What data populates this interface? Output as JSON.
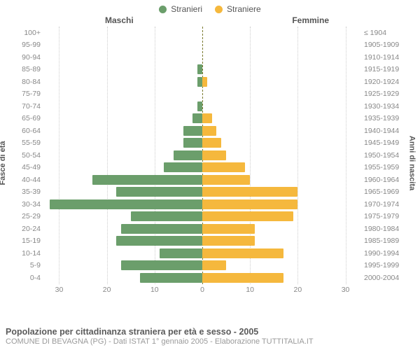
{
  "legend": {
    "male": {
      "label": "Stranieri",
      "color": "#6b9e6b"
    },
    "female": {
      "label": "Straniere",
      "color": "#f5b83d"
    }
  },
  "columns": {
    "male": "Maschi",
    "female": "Femmine"
  },
  "axes": {
    "left_title": "Fasce di età",
    "right_title": "Anni di nascita",
    "x_max": 33,
    "x_ticks": [
      30,
      20,
      10,
      0,
      10,
      20,
      30
    ],
    "grid_vals": [
      30,
      20,
      10,
      0
    ]
  },
  "chart": {
    "type": "population-pyramid",
    "row_height": 17.5,
    "bar_color_male": "#6b9e6b",
    "bar_color_female": "#f5b83d",
    "background": "#ffffff",
    "grid_color": "#cccccc",
    "center_color": "#7a7a2f",
    "rows": [
      {
        "age": "100+",
        "birth": "≤ 1904",
        "m": 0,
        "f": 0
      },
      {
        "age": "95-99",
        "birth": "1905-1909",
        "m": 0,
        "f": 0
      },
      {
        "age": "90-94",
        "birth": "1910-1914",
        "m": 0,
        "f": 0
      },
      {
        "age": "85-89",
        "birth": "1915-1919",
        "m": 1,
        "f": 0
      },
      {
        "age": "80-84",
        "birth": "1920-1924",
        "m": 1,
        "f": 1
      },
      {
        "age": "75-79",
        "birth": "1925-1929",
        "m": 0,
        "f": 0
      },
      {
        "age": "70-74",
        "birth": "1930-1934",
        "m": 1,
        "f": 0
      },
      {
        "age": "65-69",
        "birth": "1935-1939",
        "m": 2,
        "f": 2
      },
      {
        "age": "60-64",
        "birth": "1940-1944",
        "m": 4,
        "f": 3
      },
      {
        "age": "55-59",
        "birth": "1945-1949",
        "m": 4,
        "f": 4
      },
      {
        "age": "50-54",
        "birth": "1950-1954",
        "m": 6,
        "f": 5
      },
      {
        "age": "45-49",
        "birth": "1955-1959",
        "m": 8,
        "f": 9
      },
      {
        "age": "40-44",
        "birth": "1960-1964",
        "m": 23,
        "f": 10
      },
      {
        "age": "35-39",
        "birth": "1965-1969",
        "m": 18,
        "f": 20
      },
      {
        "age": "30-34",
        "birth": "1970-1974",
        "m": 32,
        "f": 20
      },
      {
        "age": "25-29",
        "birth": "1975-1979",
        "m": 15,
        "f": 19
      },
      {
        "age": "20-24",
        "birth": "1980-1984",
        "m": 17,
        "f": 11
      },
      {
        "age": "15-19",
        "birth": "1985-1989",
        "m": 18,
        "f": 11
      },
      {
        "age": "10-14",
        "birth": "1990-1994",
        "m": 9,
        "f": 17
      },
      {
        "age": "5-9",
        "birth": "1995-1999",
        "m": 17,
        "f": 5
      },
      {
        "age": "0-4",
        "birth": "2000-2004",
        "m": 13,
        "f": 17
      }
    ]
  },
  "footer": {
    "title": "Popolazione per cittadinanza straniera per età e sesso - 2005",
    "sub": "COMUNE DI BEVAGNA (PG) - Dati ISTAT 1° gennaio 2005 - Elaborazione TUTTITALIA.IT"
  }
}
